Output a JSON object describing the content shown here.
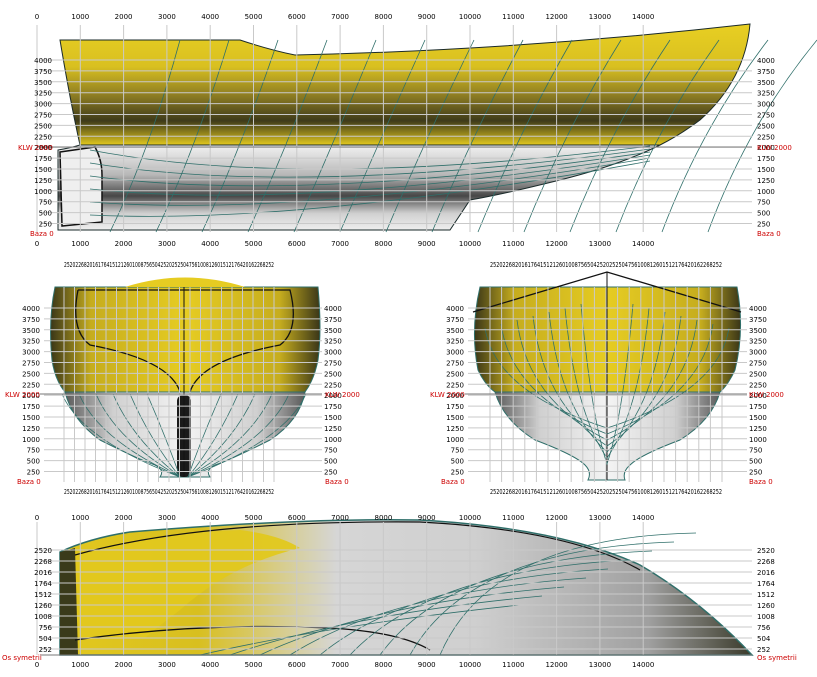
{
  "profile_view": {
    "x_ticks": [
      "0",
      "1000",
      "2000",
      "3000",
      "4000",
      "5000",
      "6000",
      "7000",
      "8000",
      "9000",
      "10000",
      "11000",
      "12000",
      "13000",
      "14000"
    ],
    "z_ticks": [
      "4000",
      "3750",
      "3500",
      "3250",
      "3000",
      "2750",
      "2500",
      "2250",
      "2000",
      "1750",
      "1500",
      "1250",
      "1000",
      "750",
      "500",
      "250"
    ],
    "waterline_left": "KLW 2000",
    "waterline_right": "KLW 2000",
    "base_left": "Baza 0",
    "base_right": "Baza 0"
  },
  "body_plan_aft": {
    "z_ticks": [
      "4000",
      "3750",
      "3500",
      "3250",
      "3000",
      "2750",
      "2500",
      "2250",
      "2000",
      "1750",
      "1500",
      "1250",
      "1000",
      "750",
      "500",
      "250"
    ],
    "waterline_left": "KLW 2000",
    "waterline_right": "KLW 2000",
    "base_left": "Baza 0",
    "base_right": "Baza 0",
    "y_ticks_text": "25202268201617641512126010087565042520252504756100812601512176420162268252"
  },
  "body_plan_fwd": {
    "z_ticks": [
      "4000",
      "3750",
      "3500",
      "3250",
      "3000",
      "2750",
      "2500",
      "2250",
      "2000",
      "1750",
      "1500",
      "1250",
      "1000",
      "750",
      "500",
      "250"
    ],
    "waterline_left": "KLW 2000",
    "waterline_right": "KLW 2000",
    "base_left": "Baza 0",
    "base_right": "Baza 0",
    "y_ticks_text": "25202268201617641512126010087565042520252504756100812601512176420162268252"
  },
  "plan_view": {
    "x_ticks": [
      "0",
      "1000",
      "2000",
      "3000",
      "4000",
      "5000",
      "6000",
      "7000",
      "8000",
      "9000",
      "10000",
      "11000",
      "12000",
      "13000",
      "14000"
    ],
    "y_ticks": [
      "2520",
      "2268",
      "2016",
      "1764",
      "1512",
      "1260",
      "1008",
      "756",
      "504",
      "252"
    ],
    "sym_left": "Os symetrii",
    "sym_right": "Os symetrii"
  },
  "colors": {
    "hull_yellow": "#e2c81e",
    "hull_dark": "#3e3a1a",
    "underwater_light": "#f0f0f0",
    "underwater_dark": "#4a4a4a",
    "contour": "#2f6f6a",
    "grid": "#c9c9c9",
    "label_red": "#cc0000"
  }
}
